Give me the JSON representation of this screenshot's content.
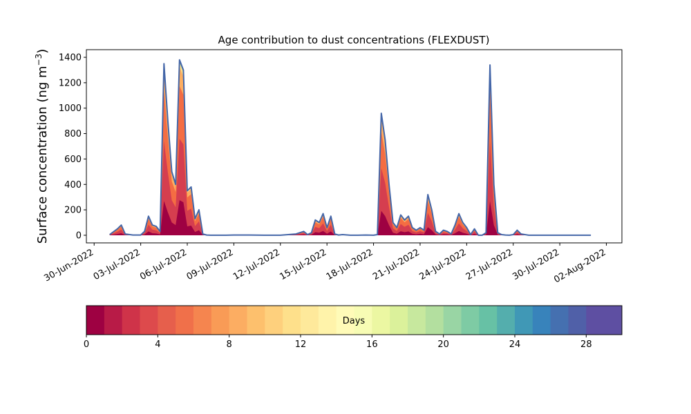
{
  "chart_data": {
    "type": "area",
    "title": "Age contribution to dust concentrations (FLEXDUST)",
    "ylabel": "Surface concentration (ng m",
    "ylabel_sup": "−3",
    "ylabel_close": ")",
    "ylim": [
      -60,
      1460
    ],
    "yticks": [
      0,
      200,
      400,
      600,
      800,
      1000,
      1200,
      1400
    ],
    "xlim": [
      "2022-06-29T12:00",
      "2022-08-03T00:00"
    ],
    "xtick_labels": [
      "30-Jun-2022",
      "03-Jul-2022",
      "06-Jul-2022",
      "09-Jul-2022",
      "12-Jul-2022",
      "15-Jul-2022",
      "18-Jul-2022",
      "21-Jul-2022",
      "24-Jul-2022",
      "27-Jul-2022",
      "30-Jul-2022",
      "02-Aug-2022"
    ],
    "xtick_dates": [
      "2022-06-30",
      "2022-07-03",
      "2022-07-06",
      "2022-07-09",
      "2022-07-12",
      "2022-07-15",
      "2022-07-18",
      "2022-07-21",
      "2022-07-24",
      "2022-07-27",
      "2022-07-30",
      "2022-08-02"
    ],
    "grid": false,
    "total_series": {
      "x": [
        "2022-07-01T00:00",
        "2022-07-01T12:00",
        "2022-07-01T18:00",
        "2022-07-02T00:00",
        "2022-07-02T12:00",
        "2022-07-03T00:00",
        "2022-07-03T06:00",
        "2022-07-03T12:00",
        "2022-07-03T18:00",
        "2022-07-04T00:00",
        "2022-07-04T06:00",
        "2022-07-04T12:00",
        "2022-07-04T18:00",
        "2022-07-05T00:00",
        "2022-07-05T06:00",
        "2022-07-05T12:00",
        "2022-07-05T18:00",
        "2022-07-06T00:00",
        "2022-07-06T06:00",
        "2022-07-06T12:00",
        "2022-07-06T18:00",
        "2022-07-07T00:00",
        "2022-07-07T06:00",
        "2022-07-07T12:00",
        "2022-07-07T18:00",
        "2022-07-08T00:00",
        "2022-07-08T06:00",
        "2022-07-08T12:00",
        "2022-07-09T00:00",
        "2022-07-10T00:00",
        "2022-07-11T00:00",
        "2022-07-12T00:00",
        "2022-07-13T00:00",
        "2022-07-13T12:00",
        "2022-07-13T18:00",
        "2022-07-14T00:00",
        "2022-07-14T06:00",
        "2022-07-14T12:00",
        "2022-07-14T18:00",
        "2022-07-15T00:00",
        "2022-07-15T06:00",
        "2022-07-15T12:00",
        "2022-07-15T18:00",
        "2022-07-16T00:00",
        "2022-07-16T12:00",
        "2022-07-17T00:00",
        "2022-07-17T12:00",
        "2022-07-18T00:00",
        "2022-07-18T06:00",
        "2022-07-18T12:00",
        "2022-07-18T18:00",
        "2022-07-19T00:00",
        "2022-07-19T06:00",
        "2022-07-19T12:00",
        "2022-07-19T18:00",
        "2022-07-20T00:00",
        "2022-07-20T06:00",
        "2022-07-20T12:00",
        "2022-07-20T18:00",
        "2022-07-21T00:00",
        "2022-07-21T06:00",
        "2022-07-21T12:00",
        "2022-07-21T18:00",
        "2022-07-22T00:00",
        "2022-07-22T06:00",
        "2022-07-22T12:00",
        "2022-07-22T18:00",
        "2022-07-23T00:00",
        "2022-07-23T06:00",
        "2022-07-23T12:00",
        "2022-07-23T18:00",
        "2022-07-24T00:00",
        "2022-07-24T06:00",
        "2022-07-24T12:00",
        "2022-07-24T18:00",
        "2022-07-25T00:00",
        "2022-07-25T06:00",
        "2022-07-25T12:00",
        "2022-07-25T18:00",
        "2022-07-26T00:00",
        "2022-07-26T06:00",
        "2022-07-26T12:00",
        "2022-07-26T18:00",
        "2022-07-27T00:00",
        "2022-07-27T06:00",
        "2022-07-27T12:00",
        "2022-07-28T00:00",
        "2022-07-28T12:00",
        "2022-07-29T00:00",
        "2022-07-29T06:00",
        "2022-07-29T12:00",
        "2022-07-30T00:00",
        "2022-07-31T00:00",
        "2022-08-01T00:00"
      ],
      "y": [
        5,
        50,
        80,
        10,
        2,
        2,
        30,
        150,
        80,
        70,
        30,
        1350,
        900,
        500,
        400,
        1380,
        1300,
        350,
        380,
        130,
        200,
        10,
        2,
        0,
        0,
        0,
        0,
        0,
        2,
        2,
        0,
        0,
        10,
        30,
        5,
        20,
        120,
        100,
        170,
        60,
        150,
        10,
        2,
        5,
        0,
        0,
        2,
        0,
        5,
        960,
        750,
        400,
        100,
        60,
        160,
        120,
        150,
        60,
        40,
        60,
        40,
        320,
        200,
        30,
        10,
        40,
        30,
        10,
        80,
        170,
        100,
        60,
        5,
        50,
        0,
        0,
        20,
        1340,
        400,
        20,
        5,
        2,
        0,
        5,
        40,
        10,
        0,
        0,
        0,
        0,
        0,
        0,
        0,
        0
      ]
    },
    "colorbar": {
      "label": "Days",
      "min": 0,
      "max": 30,
      "step": 1,
      "tick_values": [
        0,
        4,
        8,
        12,
        16,
        20,
        24,
        28
      ],
      "colors": [
        "#9e0142",
        "#b81b47",
        "#cf3349",
        "#dd4a4c",
        "#e65f4c",
        "#f0704a",
        "#f5854f",
        "#f99b56",
        "#fcad62",
        "#fdc06d",
        "#fed07d",
        "#fee08b",
        "#fee99b",
        "#fff3aa",
        "#fffbb8",
        "#f7fcb4",
        "#ecf7a2",
        "#dbf19b",
        "#c7e89e",
        "#b3df9f",
        "#99d5a4",
        "#7ecba4",
        "#67c1a5",
        "#54aead",
        "#4098b6",
        "#3883bb",
        "#4570b0",
        "#5060a8",
        "#5e4fa2",
        "#5e4fa2"
      ]
    },
    "accent": "#4466a8"
  }
}
